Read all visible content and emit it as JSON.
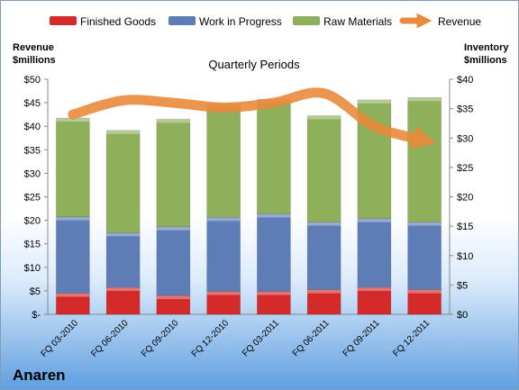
{
  "legend": {
    "finished": "Finished Goods",
    "wip": "Work in Progress",
    "raw": "Raw Materials",
    "revenue": "Revenue"
  },
  "left_axis_title": [
    "Revenue",
    "$millions"
  ],
  "right_axis_title": [
    "Inventory",
    "$millions"
  ],
  "subtitle": "Quarterly Periods",
  "company": "Anaren",
  "colors": {
    "finished": "#d42a2a",
    "wip": "#5e7db7",
    "raw": "#8fb05a",
    "revenue": "#e98a3c"
  },
  "chart_data": {
    "type": "bar",
    "stacked": true,
    "categories": [
      "FQ 03-2010",
      "FQ 06-2010",
      "FQ 09-2010",
      "FQ 12-2010",
      "FQ 03-2011",
      "FQ 06-2011",
      "FQ 09-2011",
      "FQ 12-2011"
    ],
    "series": [
      {
        "name": "Finished Goods",
        "axis": "right",
        "values": [
          3.6,
          4.6,
          3.2,
          3.9,
          3.9,
          4.2,
          4.6,
          4.2
        ]
      },
      {
        "name": "Work in Progress",
        "axis": "right",
        "values": [
          13.0,
          9.3,
          11.7,
          12.6,
          13.2,
          11.5,
          11.7,
          11.5
        ]
      },
      {
        "name": "Raw Materials",
        "axis": "right",
        "values": [
          16.8,
          17.4,
          18.3,
          19.3,
          19.5,
          18.1,
          20.2,
          21.2
        ]
      },
      {
        "name": "Revenue",
        "type": "line",
        "axis": "left",
        "values": [
          42.5,
          45.5,
          45.0,
          44.0,
          45.0,
          47.0,
          40.0,
          37.0
        ]
      }
    ],
    "left_axis": {
      "min": 0,
      "max": 50,
      "step": 5,
      "tick_labels": [
        "$-",
        "$5",
        "$10",
        "$15",
        "$20",
        "$25",
        "$30",
        "$35",
        "$40",
        "$45",
        "$50"
      ]
    },
    "right_axis": {
      "min": 0,
      "max": 40,
      "step": 5,
      "tick_labels": [
        "$0",
        "$5",
        "$10",
        "$15",
        "$20",
        "$25",
        "$30",
        "$35",
        "$40"
      ]
    },
    "grid": false,
    "legend_position": "top"
  }
}
